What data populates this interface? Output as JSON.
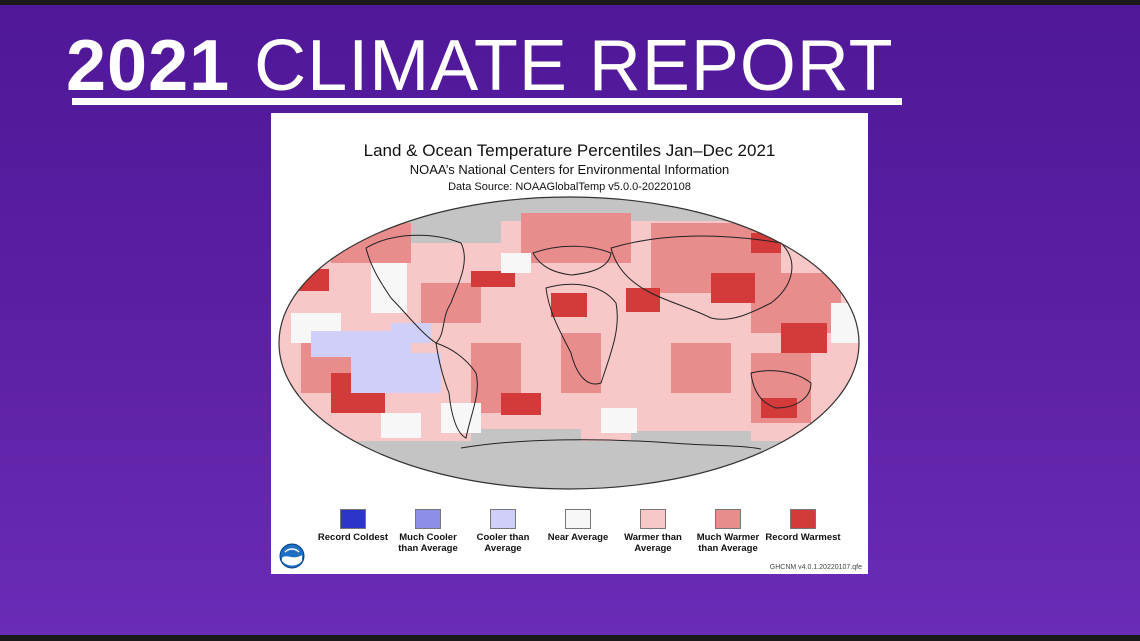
{
  "headline": {
    "year": "2021",
    "rest": "CLIMATE REPORT"
  },
  "figure": {
    "title": "Land & Ocean Temperature Percentiles Jan–Dec 2021",
    "subtitle": "NOAA’s National Centers for Environmental Information",
    "source": "Data Source: NOAAGlobalTemp v5.0.0-20220108",
    "credit": "GHCNM v4.0.1.20220107.qfe",
    "legend": [
      {
        "label": "Record Coldest",
        "color": "#2b35c8"
      },
      {
        "label": "Much Cooler than Average",
        "color": "#8c8ee8"
      },
      {
        "label": "Cooler than Average",
        "color": "#cfcff7"
      },
      {
        "label": "Near Average",
        "color": "#f7f7f7"
      },
      {
        "label": "Warmer than Average",
        "color": "#f8c8c8"
      },
      {
        "label": "Much Warmer than Average",
        "color": "#e98c8c"
      },
      {
        "label": "Record Warmest",
        "color": "#d33a3a"
      }
    ],
    "no_data_color": "#c4c4c4"
  }
}
